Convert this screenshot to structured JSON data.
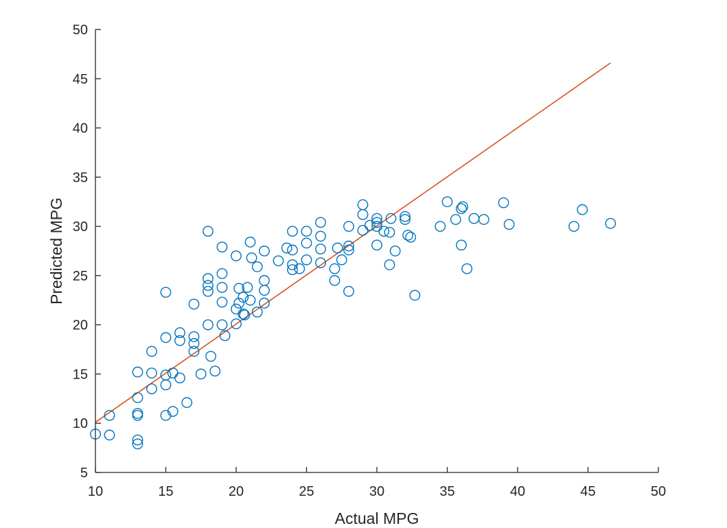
{
  "chart_data": {
    "type": "scatter",
    "xlabel": "Actual MPG",
    "ylabel": "Predicted MPG",
    "xlim": [
      10,
      50
    ],
    "ylim": [
      5,
      50
    ],
    "xticks": [
      "10",
      "15",
      "20",
      "25",
      "30",
      "35",
      "40",
      "45",
      "50"
    ],
    "yticks": [
      "5",
      "10",
      "15",
      "20",
      "25",
      "30",
      "35",
      "40",
      "45",
      "50"
    ],
    "grid": false,
    "colors": {
      "points": "#0072BD",
      "line": "#D95319",
      "axes": "#262626"
    },
    "series": [
      {
        "type": "scatter",
        "points": [
          [
            10,
            8.9
          ],
          [
            11,
            8.8
          ],
          [
            11,
            10.8
          ],
          [
            13,
            7.9
          ],
          [
            13,
            8.3
          ],
          [
            13,
            10.8
          ],
          [
            13,
            11.0
          ],
          [
            13,
            12.6
          ],
          [
            13,
            15.2
          ],
          [
            14,
            13.5
          ],
          [
            14,
            15.1
          ],
          [
            14,
            17.3
          ],
          [
            15,
            10.8
          ],
          [
            15,
            13.9
          ],
          [
            15,
            14.9
          ],
          [
            15,
            18.7
          ],
          [
            15,
            23.3
          ],
          [
            15.5,
            11.2
          ],
          [
            15.5,
            15.1
          ],
          [
            16,
            14.6
          ],
          [
            16,
            18.4
          ],
          [
            16,
            19.2
          ],
          [
            16.5,
            12.1
          ],
          [
            17,
            17.3
          ],
          [
            17,
            18.1
          ],
          [
            17,
            18.8
          ],
          [
            17,
            22.1
          ],
          [
            17.5,
            15.0
          ],
          [
            18,
            20.0
          ],
          [
            18,
            23.4
          ],
          [
            18,
            24.0
          ],
          [
            18,
            24.7
          ],
          [
            18,
            29.5
          ],
          [
            18.2,
            16.8
          ],
          [
            18.5,
            15.3
          ],
          [
            19,
            20.0
          ],
          [
            19,
            22.3
          ],
          [
            19,
            23.8
          ],
          [
            19,
            25.2
          ],
          [
            19,
            27.9
          ],
          [
            19.2,
            18.9
          ],
          [
            20,
            20.1
          ],
          [
            20,
            21.6
          ],
          [
            20,
            27.0
          ],
          [
            20.2,
            22.2
          ],
          [
            20.2,
            23.7
          ],
          [
            20.5,
            21.1
          ],
          [
            20.5,
            22.8
          ],
          [
            20.6,
            21.0
          ],
          [
            20.8,
            23.8
          ],
          [
            21,
            22.5
          ],
          [
            21,
            28.4
          ],
          [
            21.1,
            26.8
          ],
          [
            21.5,
            21.3
          ],
          [
            21.5,
            25.9
          ],
          [
            22,
            22.2
          ],
          [
            22,
            23.5
          ],
          [
            22,
            24.5
          ],
          [
            22,
            27.5
          ],
          [
            23,
            26.5
          ],
          [
            23.6,
            27.8
          ],
          [
            24,
            25.6
          ],
          [
            24,
            26.1
          ],
          [
            24,
            27.6
          ],
          [
            24,
            29.5
          ],
          [
            24.5,
            25.7
          ],
          [
            25,
            26.6
          ],
          [
            25,
            28.3
          ],
          [
            25,
            29.5
          ],
          [
            26,
            26.3
          ],
          [
            26,
            27.7
          ],
          [
            26,
            29.0
          ],
          [
            26,
            30.4
          ],
          [
            27,
            24.5
          ],
          [
            27,
            25.7
          ],
          [
            27.2,
            27.8
          ],
          [
            27.5,
            26.6
          ],
          [
            28,
            23.4
          ],
          [
            28,
            27.6
          ],
          [
            28,
            28.0
          ],
          [
            28,
            30.0
          ],
          [
            29,
            29.6
          ],
          [
            29,
            31.2
          ],
          [
            29,
            32.2
          ],
          [
            29.5,
            30.1
          ],
          [
            30,
            28.1
          ],
          [
            30,
            30.0
          ],
          [
            30,
            30.4
          ],
          [
            30,
            30.8
          ],
          [
            30.5,
            29.5
          ],
          [
            30.9,
            26.1
          ],
          [
            30.9,
            29.4
          ],
          [
            31,
            30.8
          ],
          [
            31.3,
            27.5
          ],
          [
            32,
            30.7
          ],
          [
            32,
            31.0
          ],
          [
            32.2,
            29.1
          ],
          [
            32.4,
            28.9
          ],
          [
            32.7,
            23.0
          ],
          [
            34.5,
            30.0
          ],
          [
            35,
            32.5
          ],
          [
            35.6,
            30.7
          ],
          [
            36,
            28.1
          ],
          [
            36,
            31.8
          ],
          [
            36.1,
            32.0
          ],
          [
            36.4,
            25.7
          ],
          [
            36.9,
            30.8
          ],
          [
            37.6,
            30.7
          ],
          [
            39,
            32.4
          ],
          [
            39.4,
            30.2
          ],
          [
            44,
            30.0
          ],
          [
            44.6,
            31.7
          ],
          [
            46.6,
            30.3
          ]
        ]
      },
      {
        "type": "line",
        "points": [
          [
            10,
            10.1
          ],
          [
            46.6,
            46.6
          ]
        ]
      }
    ]
  }
}
